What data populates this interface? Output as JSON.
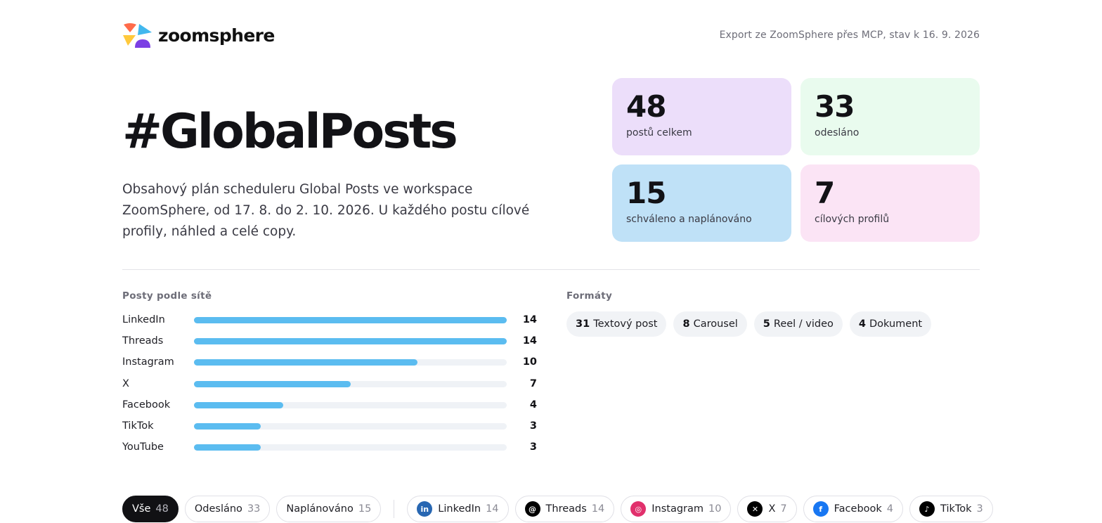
{
  "header": {
    "brand": "zoomsphere",
    "export_note": "Export ze ZoomSphere přes MCP, stav k 16. 9. 2026"
  },
  "hero": {
    "title": "#GlobalPosts",
    "description": "Obsahový plán scheduleru Global Posts ve workspace ZoomSphere, od 17. 8. do 2. 10. 2026. U každého postu cílové profily, náhled a celé copy."
  },
  "kpis": [
    {
      "value": "48",
      "label": "postů celkem",
      "color": "#ecdefa"
    },
    {
      "value": "33",
      "label": "odesláno",
      "color": "#e9fbee"
    },
    {
      "value": "15",
      "label": "schváleno a naplánováno",
      "color": "#bfe1f7"
    },
    {
      "value": "7",
      "label": "cílových profilů",
      "color": "#fbe4f5"
    }
  ],
  "networks": {
    "title": "Posty podle sítě",
    "max": 14,
    "items": [
      {
        "name": "LinkedIn",
        "count": 14
      },
      {
        "name": "Threads",
        "count": 14
      },
      {
        "name": "Instagram",
        "count": 10
      },
      {
        "name": "X",
        "count": 7
      },
      {
        "name": "Facebook",
        "count": 4
      },
      {
        "name": "TikTok",
        "count": 3
      },
      {
        "name": "YouTube",
        "count": 3
      }
    ]
  },
  "formats": {
    "title": "Formáty",
    "items": [
      {
        "count": "31",
        "label": "Textový post"
      },
      {
        "count": "8",
        "label": "Carousel"
      },
      {
        "count": "5",
        "label": "Reel / video"
      },
      {
        "count": "4",
        "label": "Dokument"
      }
    ]
  },
  "filters": {
    "status": [
      {
        "label": "Vše",
        "count": "48",
        "active": true
      },
      {
        "label": "Odesláno",
        "count": "33",
        "active": false
      },
      {
        "label": "Naplánováno",
        "count": "15",
        "active": false
      }
    ],
    "networks": [
      {
        "label": "LinkedIn",
        "count": "14",
        "icon": "linkedin-icon",
        "color": "#2867b2"
      },
      {
        "label": "Threads",
        "count": "14",
        "icon": "threads-icon",
        "color": "#000000"
      },
      {
        "label": "Instagram",
        "count": "10",
        "icon": "instagram-icon",
        "color": "#e1306c"
      },
      {
        "label": "X",
        "count": "7",
        "icon": "x-icon",
        "color": "#000000"
      },
      {
        "label": "Facebook",
        "count": "4",
        "icon": "facebook-icon",
        "color": "#1877f2"
      },
      {
        "label": "TikTok",
        "count": "3",
        "icon": "tiktok-icon",
        "color": "#000000"
      }
    ]
  },
  "colors": {
    "bar": "#5bbcf0",
    "bar_track": "#eff2f6"
  }
}
